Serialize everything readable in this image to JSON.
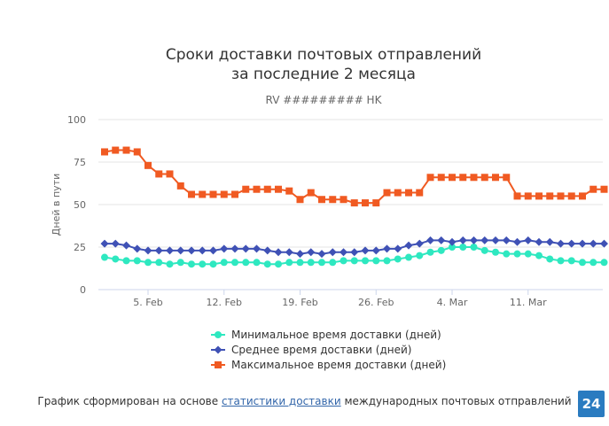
{
  "chart_data": {
    "type": "line",
    "title_line1": "Сроки доставки почтовых отправлений",
    "title_line2": "за последние 2 месяца",
    "subtitle": "RV ######### HK",
    "ylabel": "Дней в пути",
    "ylim": [
      0,
      100
    ],
    "yticks": [
      0,
      25,
      50,
      75,
      100
    ],
    "grid": true,
    "legend_position": "bottom",
    "xtick_labels": [
      "5. Feb",
      "12. Feb",
      "19. Feb",
      "26. Feb",
      "4. Mar",
      "11. Mar"
    ],
    "xtick_day_index": [
      4,
      11,
      18,
      25,
      32,
      39
    ],
    "series": [
      {
        "name": "Минимальное время доставки (дней)",
        "color": "#2ee8c0",
        "marker": "circle",
        "values": [
          19,
          18,
          17,
          17,
          16,
          16,
          15,
          16,
          15,
          15,
          15,
          16,
          16,
          16,
          16,
          15,
          15,
          16,
          16,
          16,
          16,
          16,
          17,
          17,
          17,
          17,
          17,
          18,
          19,
          20,
          22,
          23,
          25,
          25,
          25,
          23,
          22,
          21,
          21,
          21,
          20,
          18,
          17,
          17,
          16,
          16,
          16
        ]
      },
      {
        "name": "Среднее время доставки (дней)",
        "color": "#3f51b5",
        "marker": "diamond",
        "values": [
          27,
          27,
          26,
          24,
          23,
          23,
          23,
          23,
          23,
          23,
          23,
          24,
          24,
          24,
          24,
          23,
          22,
          22,
          21,
          22,
          21,
          22,
          22,
          22,
          23,
          23,
          24,
          24,
          26,
          27,
          29,
          29,
          28,
          29,
          29,
          29,
          29,
          29,
          28,
          29,
          28,
          28,
          27,
          27,
          27,
          27,
          27
        ]
      },
      {
        "name": "Максимальное время доставки (дней)",
        "color": "#f05a22",
        "marker": "square",
        "values": [
          81,
          82,
          82,
          81,
          73,
          68,
          68,
          61,
          56,
          56,
          56,
          56,
          56,
          59,
          59,
          59,
          59,
          58,
          53,
          57,
          53,
          53,
          53,
          51,
          51,
          51,
          57,
          57,
          57,
          57,
          66,
          66,
          66,
          66,
          66,
          66,
          66,
          66,
          55,
          55,
          55,
          55,
          55,
          55,
          55,
          59,
          59
        ]
      }
    ]
  },
  "footer": {
    "prefix": "График сформирован на основе ",
    "link_text": "статистики доставки",
    "suffix": " международных почтовых отправлений"
  },
  "badge": {
    "text": "24",
    "color": "#2a7bc0"
  }
}
